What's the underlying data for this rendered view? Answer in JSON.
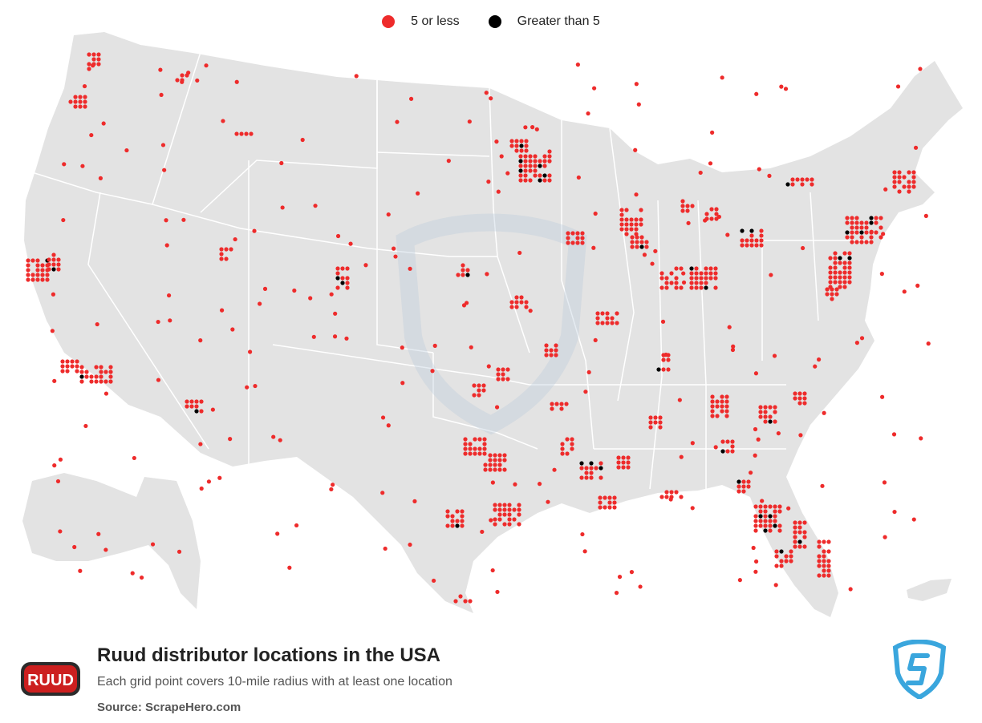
{
  "legend": {
    "items": [
      {
        "label": "5 or less",
        "color": "#ee2b2b"
      },
      {
        "label": "Greater than 5",
        "color": "#000000"
      }
    ]
  },
  "footer": {
    "title": "Ruud distributor locations in the USA",
    "subtitle": "Each grid point covers 10-mile radius with at least one location",
    "source": "Source: ScrapeHero.com",
    "logo_text": "RUUD"
  },
  "colors": {
    "land": "#e3e3e3",
    "border": "#ffffff",
    "red_dot": "#ee2b2b",
    "black_dot": "#000000",
    "watermark": "#c9d7e3",
    "brand_blue": "#3aa6dd"
  }
}
